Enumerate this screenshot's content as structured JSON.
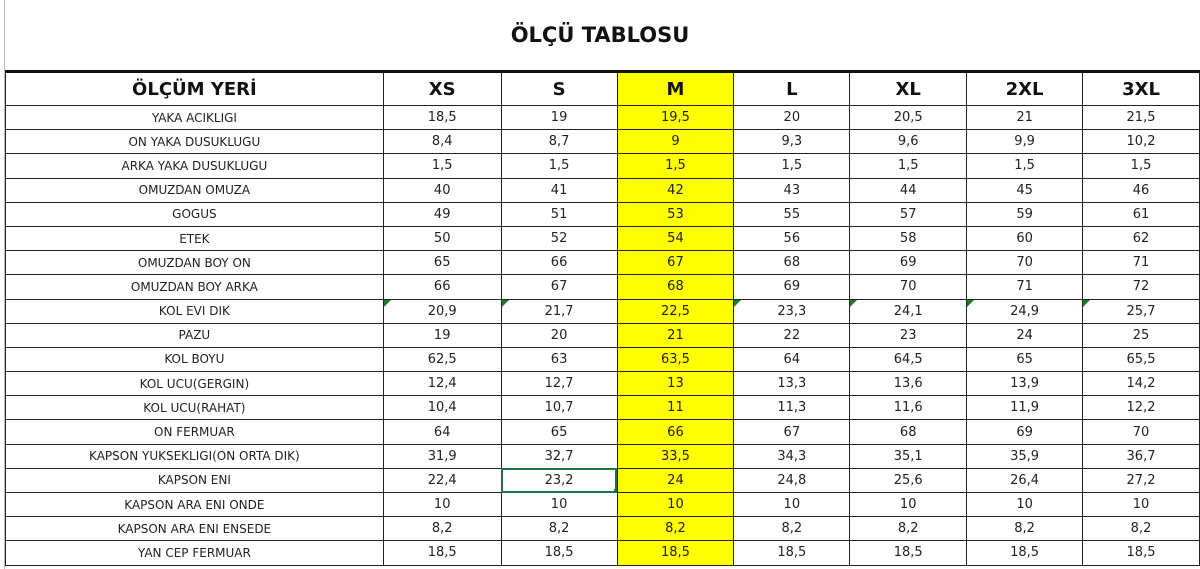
{
  "title": "ÖLÇÜ TABLOSU",
  "columns": [
    "ÖLÇÜM YERİ",
    "XS",
    "S",
    "M",
    "L",
    "XL",
    "2XL",
    "3XL"
  ],
  "highlight_color": "#ffff00",
  "selection_color": "#217346",
  "rows": [
    {
      "label": "YAKA ACIKLIGI",
      "values": [
        "18,5",
        "19",
        "19,5",
        "20",
        "20,5",
        "21",
        "21,5"
      ]
    },
    {
      "label": "ON YAKA DUSUKLUGU",
      "values": [
        "8,4",
        "8,7",
        "9",
        "9,3",
        "9,6",
        "9,9",
        "10,2"
      ]
    },
    {
      "label": "ARKA YAKA DUSUKLUGU",
      "values": [
        "1,5",
        "1,5",
        "1,5",
        "1,5",
        "1,5",
        "1,5",
        "1,5"
      ]
    },
    {
      "label": "OMUZDAN OMUZA",
      "values": [
        "40",
        "41",
        "42",
        "43",
        "44",
        "45",
        "46"
      ]
    },
    {
      "label": "GOGUS",
      "values": [
        "49",
        "51",
        "53",
        "55",
        "57",
        "59",
        "61"
      ]
    },
    {
      "label": "ETEK",
      "values": [
        "50",
        "52",
        "54",
        "56",
        "58",
        "60",
        "62"
      ]
    },
    {
      "label": "OMUZDAN BOY ON",
      "values": [
        "65",
        "66",
        "67",
        "68",
        "69",
        "70",
        "71"
      ]
    },
    {
      "label": "OMUZDAN BOY ARKA",
      "values": [
        "66",
        "67",
        "68",
        "69",
        "70",
        "71",
        "72"
      ]
    },
    {
      "label": "KOL EVI DIK",
      "values": [
        "20,9",
        "21,7",
        "22,5",
        "23,3",
        "24,1",
        "24,9",
        "25,7"
      ]
    },
    {
      "label": "PAZU",
      "values": [
        "19",
        "20",
        "21",
        "22",
        "23",
        "24",
        "25"
      ]
    },
    {
      "label": "KOL BOYU",
      "values": [
        "62,5",
        "63",
        "63,5",
        "64",
        "64,5",
        "65",
        "65,5"
      ]
    },
    {
      "label": "KOL UCU(GERGIN)",
      "values": [
        "12,4",
        "12,7",
        "13",
        "13,3",
        "13,6",
        "13,9",
        "14,2"
      ]
    },
    {
      "label": "KOL UCU(RAHAT)",
      "values": [
        "10,4",
        "10,7",
        "11",
        "11,3",
        "11,6",
        "11,9",
        "12,2"
      ]
    },
    {
      "label": "ON FERMUAR",
      "values": [
        "64",
        "65",
        "66",
        "67",
        "68",
        "69",
        "70"
      ]
    },
    {
      "label": "KAPSON YUKSEKLIGI(ON ORTA DIK)",
      "values": [
        "31,9",
        "32,7",
        "33,5",
        "34,3",
        "35,1",
        "35,9",
        "36,7"
      ]
    },
    {
      "label": "KAPSON ENI",
      "values": [
        "22,4",
        "23,2",
        "24",
        "24,8",
        "25,6",
        "26,4",
        "27,2"
      ]
    },
    {
      "label": "KAPSON ARA ENI ONDE",
      "values": [
        "10",
        "10",
        "10",
        "10",
        "10",
        "10",
        "10"
      ]
    },
    {
      "label": "KAPSON ARA ENI ENSEDE",
      "values": [
        "8,2",
        "8,2",
        "8,2",
        "8,2",
        "8,2",
        "8,2",
        "8,2"
      ]
    },
    {
      "label": "YAN CEP FERMUAR",
      "values": [
        "18,5",
        "18,5",
        "18,5",
        "18,5",
        "18,5",
        "18,5",
        "18,5"
      ]
    }
  ]
}
